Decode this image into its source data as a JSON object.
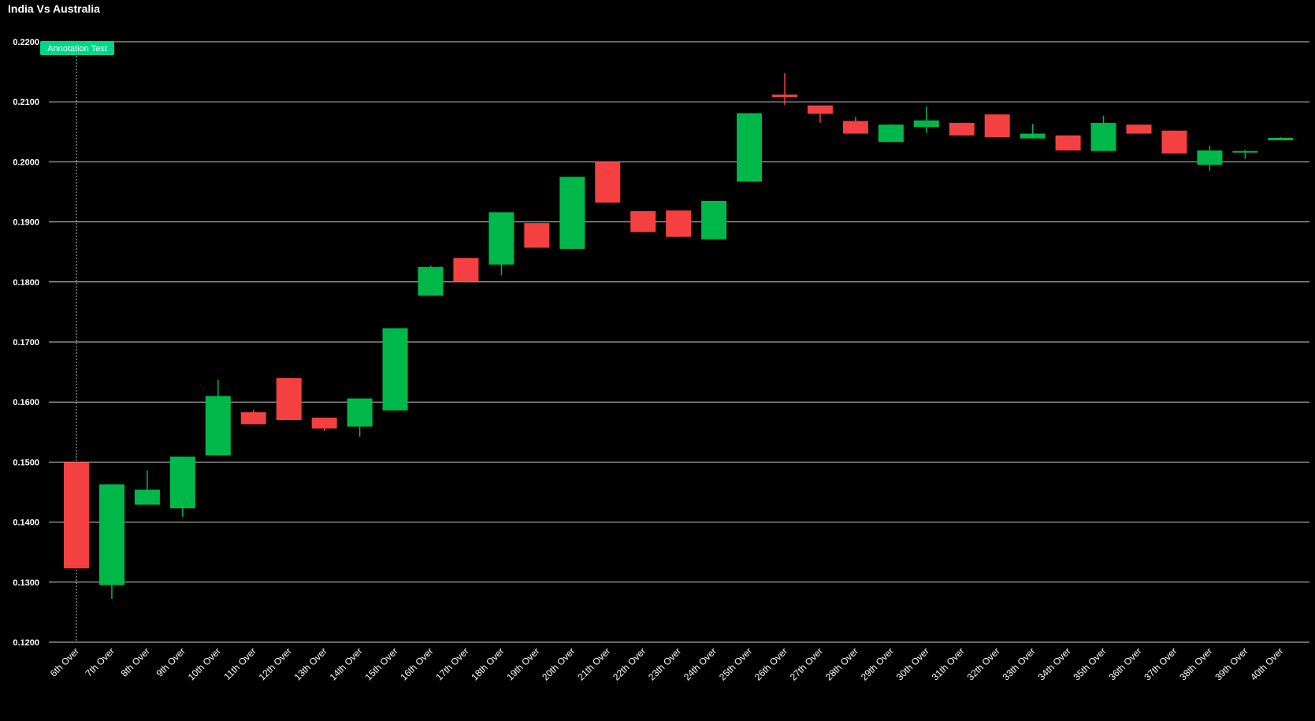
{
  "chart_data": {
    "type": "candlestick",
    "title": "India Vs Australia",
    "ylim": [
      0.12,
      0.22
    ],
    "yticks": [
      "0.1200",
      "0.1300",
      "0.1400",
      "0.1500",
      "0.1600",
      "0.1700",
      "0.1800",
      "0.1900",
      "0.2000",
      "0.2100",
      "0.2200"
    ],
    "grid": true,
    "colors": {
      "up": "#00b84a",
      "down": "#f44040",
      "background": "#000000",
      "grid": "#cccccc",
      "annotation": "#00d68a"
    },
    "annotation": {
      "label": "Annotation Test",
      "category": "6th Over"
    },
    "categories": [
      "6th Over",
      "7th Over",
      "8th Over",
      "9th Over",
      "10th Over",
      "11th Over",
      "12th Over",
      "13th Over",
      "14th Over",
      "15th Over",
      "16th Over",
      "17th Over",
      "18th Over",
      "19th Over",
      "20th Over",
      "21th Over",
      "22th Over",
      "23th Over",
      "24th Over",
      "25th Over",
      "26th Over",
      "27th Over",
      "28th Over",
      "29th Over",
      "30th Over",
      "31th Over",
      "32th Over",
      "33th Over",
      "34th Over",
      "35th Over",
      "36th Over",
      "37th Over",
      "38th Over",
      "39th Over",
      "40th Over"
    ],
    "series": [
      {
        "open": 0.15,
        "high": 0.15,
        "low": 0.1323,
        "close": 0.1323
      },
      {
        "open": 0.1295,
        "high": 0.1463,
        "low": 0.1272,
        "close": 0.1463
      },
      {
        "open": 0.1429,
        "high": 0.1486,
        "low": 0.1429,
        "close": 0.1454
      },
      {
        "open": 0.1423,
        "high": 0.1509,
        "low": 0.1409,
        "close": 0.1509
      },
      {
        "open": 0.1511,
        "high": 0.1637,
        "low": 0.1511,
        "close": 0.161
      },
      {
        "open": 0.1583,
        "high": 0.1587,
        "low": 0.1563,
        "close": 0.1563
      },
      {
        "open": 0.164,
        "high": 0.164,
        "low": 0.157,
        "close": 0.157
      },
      {
        "open": 0.1574,
        "high": 0.1574,
        "low": 0.1552,
        "close": 0.1556
      },
      {
        "open": 0.1559,
        "high": 0.1606,
        "low": 0.1542,
        "close": 0.1606
      },
      {
        "open": 0.1586,
        "high": 0.1723,
        "low": 0.1586,
        "close": 0.1723
      },
      {
        "open": 0.1777,
        "high": 0.1827,
        "low": 0.1777,
        "close": 0.1825
      },
      {
        "open": 0.184,
        "high": 0.184,
        "low": 0.18,
        "close": 0.18
      },
      {
        "open": 0.1829,
        "high": 0.1916,
        "low": 0.1811,
        "close": 0.1916
      },
      {
        "open": 0.1898,
        "high": 0.1898,
        "low": 0.1857,
        "close": 0.1857
      },
      {
        "open": 0.1855,
        "high": 0.1975,
        "low": 0.1855,
        "close": 0.1975
      },
      {
        "open": 0.2,
        "high": 0.2,
        "low": 0.1932,
        "close": 0.1932
      },
      {
        "open": 0.1918,
        "high": 0.1918,
        "low": 0.1883,
        "close": 0.1883
      },
      {
        "open": 0.1919,
        "high": 0.1919,
        "low": 0.1875,
        "close": 0.1875
      },
      {
        "open": 0.1871,
        "high": 0.1935,
        "low": 0.1871,
        "close": 0.1935
      },
      {
        "open": 0.1967,
        "high": 0.2081,
        "low": 0.1967,
        "close": 0.2081
      },
      {
        "open": 0.2112,
        "high": 0.2148,
        "low": 0.2095,
        "close": 0.2108
      },
      {
        "open": 0.2094,
        "high": 0.2094,
        "low": 0.2065,
        "close": 0.208
      },
      {
        "open": 0.2068,
        "high": 0.2075,
        "low": 0.2047,
        "close": 0.2047
      },
      {
        "open": 0.2033,
        "high": 0.2063,
        "low": 0.2033,
        "close": 0.2062
      },
      {
        "open": 0.2058,
        "high": 0.2092,
        "low": 0.2048,
        "close": 0.2069
      },
      {
        "open": 0.2065,
        "high": 0.2065,
        "low": 0.2044,
        "close": 0.2044
      },
      {
        "open": 0.2079,
        "high": 0.2079,
        "low": 0.2041,
        "close": 0.2041
      },
      {
        "open": 0.2039,
        "high": 0.2063,
        "low": 0.2039,
        "close": 0.2047
      },
      {
        "open": 0.2044,
        "high": 0.2044,
        "low": 0.2019,
        "close": 0.2019
      },
      {
        "open": 0.2018,
        "high": 0.2077,
        "low": 0.2018,
        "close": 0.2065
      },
      {
        "open": 0.2062,
        "high": 0.2062,
        "low": 0.2047,
        "close": 0.2047
      },
      {
        "open": 0.2052,
        "high": 0.2052,
        "low": 0.2014,
        "close": 0.2014
      },
      {
        "open": 0.1995,
        "high": 0.2027,
        "low": 0.1985,
        "close": 0.2019
      },
      {
        "open": 0.2016,
        "high": 0.202,
        "low": 0.2005,
        "close": 0.2018
      },
      {
        "open": 0.2036,
        "high": 0.2041,
        "low": 0.2036,
        "close": 0.204
      }
    ]
  }
}
